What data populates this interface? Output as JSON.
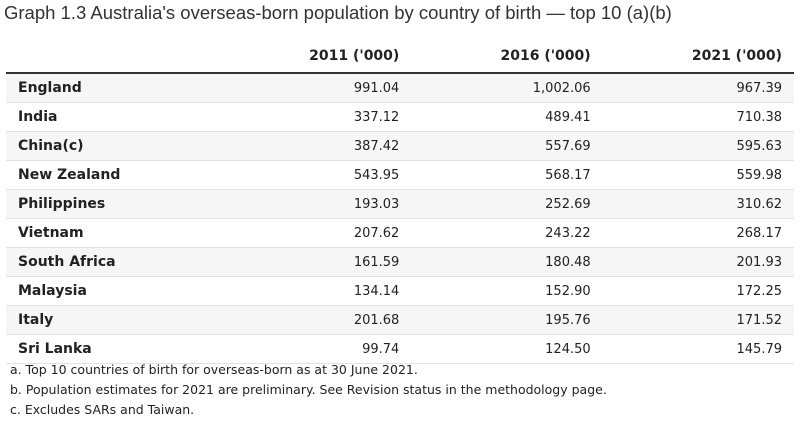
{
  "header": {
    "title": "Graph 1.3 Australia's overseas-born population by country of birth — top 10 (a)(b)"
  },
  "table": {
    "columns": [
      "",
      "2011 ('000)",
      "2016 ('000)",
      "2021 ('000)"
    ],
    "rows": [
      [
        "England",
        "991.04",
        "1,002.06",
        "967.39"
      ],
      [
        "India",
        "337.12",
        "489.41",
        "710.38"
      ],
      [
        "China(c)",
        "387.42",
        "557.69",
        "595.63"
      ],
      [
        "New Zealand",
        "543.95",
        "568.17",
        "559.98"
      ],
      [
        "Philippines",
        "193.03",
        "252.69",
        "310.62"
      ],
      [
        "Vietnam",
        "207.62",
        "243.22",
        "268.17"
      ],
      [
        "South Africa",
        "161.59",
        "180.48",
        "201.93"
      ],
      [
        "Malaysia",
        "134.14",
        "152.90",
        "172.25"
      ],
      [
        "Italy",
        "201.68",
        "195.76",
        "171.52"
      ],
      [
        "Sri Lanka",
        "99.74",
        "124.50",
        "145.79"
      ]
    ]
  },
  "notes": [
    "a. Top 10 countries of birth for overseas-born as at 30 June 2021.",
    "b. Population estimates for 2021 are preliminary. See Revision status in the methodology page.",
    "c. Excludes SARs and Taiwan."
  ]
}
